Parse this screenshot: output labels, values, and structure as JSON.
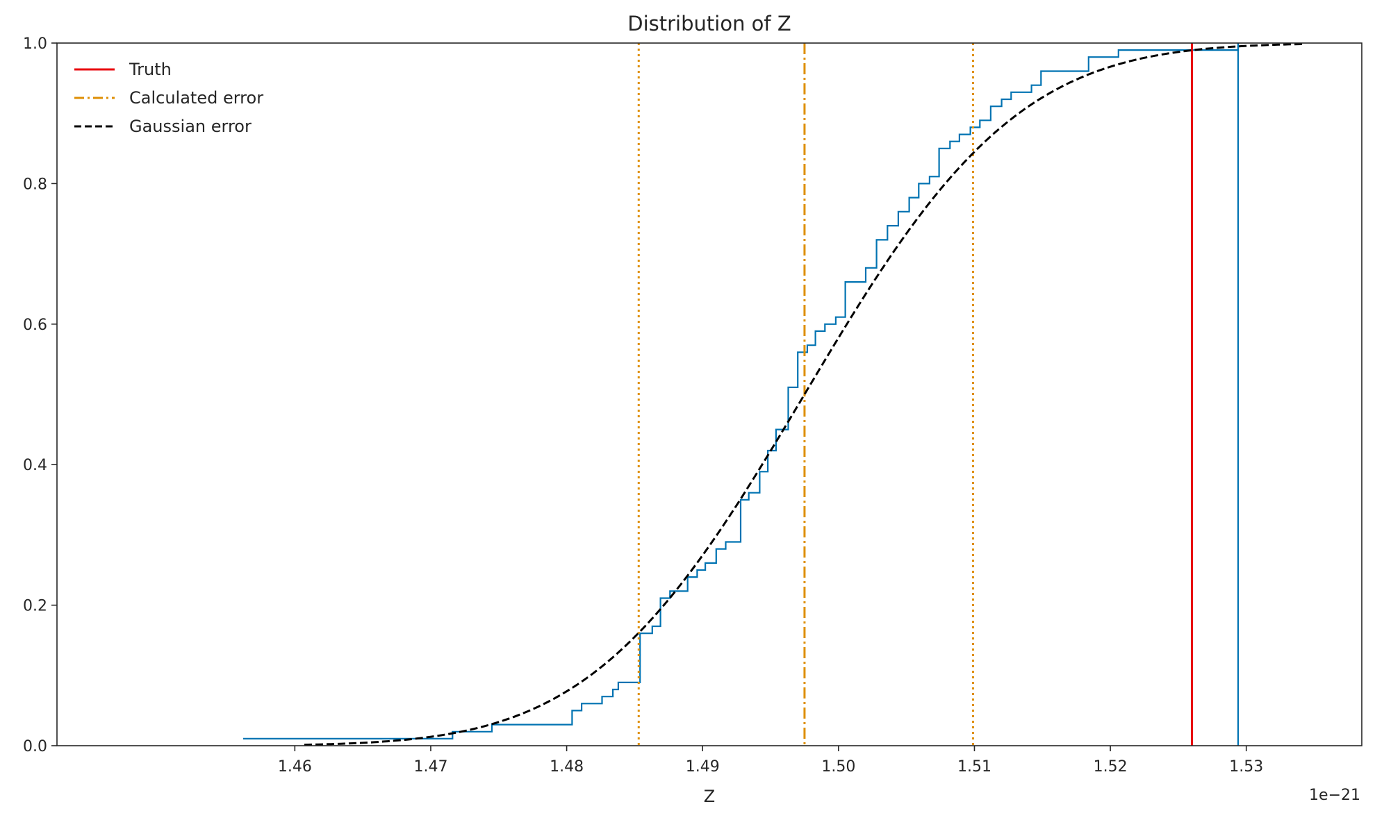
{
  "chart_data": {
    "type": "line",
    "title": "Distribution of Z",
    "xlabel": "Z",
    "ylabel": "",
    "offset_text": "1e−21",
    "xlim": [
      1.4425,
      1.5385
    ],
    "ylim": [
      0.0,
      1.0
    ],
    "xticks": [
      1.46,
      1.47,
      1.48,
      1.49,
      1.5,
      1.51,
      1.52,
      1.53
    ],
    "xtick_labels": [
      "1.46",
      "1.47",
      "1.48",
      "1.49",
      "1.50",
      "1.51",
      "1.52",
      "1.53"
    ],
    "yticks": [
      0.0,
      0.2,
      0.4,
      0.6,
      0.8,
      1.0
    ],
    "ytick_labels": [
      "0.0",
      "0.2",
      "0.4",
      "0.6",
      "0.8",
      "1.0"
    ],
    "grid": false,
    "legend_position": "top-left",
    "legend": [
      {
        "label": "Truth",
        "color": "#e8000b",
        "style": "solid"
      },
      {
        "label": "Calculated error",
        "color": "#de8f05",
        "style": "dashdot"
      },
      {
        "label": "Gaussian error",
        "color": "#000000",
        "style": "dashed"
      }
    ],
    "ecdf": {
      "color": "#0173b2",
      "steps": [
        [
          1.4562,
          0.01
        ],
        [
          1.4716,
          0.02
        ],
        [
          1.4745,
          0.03
        ],
        [
          1.4804,
          0.05
        ],
        [
          1.4811,
          0.06
        ],
        [
          1.4826,
          0.07
        ],
        [
          1.4834,
          0.08
        ],
        [
          1.4838,
          0.09
        ],
        [
          1.4854,
          0.16
        ],
        [
          1.4863,
          0.17
        ],
        [
          1.4869,
          0.21
        ],
        [
          1.4876,
          0.22
        ],
        [
          1.4889,
          0.24
        ],
        [
          1.4896,
          0.25
        ],
        [
          1.4902,
          0.26
        ],
        [
          1.491,
          0.28
        ],
        [
          1.4917,
          0.29
        ],
        [
          1.4928,
          0.35
        ],
        [
          1.4934,
          0.36
        ],
        [
          1.4942,
          0.39
        ],
        [
          1.4948,
          0.42
        ],
        [
          1.4954,
          0.45
        ],
        [
          1.4963,
          0.51
        ],
        [
          1.497,
          0.56
        ],
        [
          1.4977,
          0.57
        ],
        [
          1.4983,
          0.59
        ],
        [
          1.499,
          0.6
        ],
        [
          1.4998,
          0.61
        ],
        [
          1.5005,
          0.66
        ],
        [
          1.502,
          0.68
        ],
        [
          1.5028,
          0.72
        ],
        [
          1.5036,
          0.74
        ],
        [
          1.5044,
          0.76
        ],
        [
          1.5052,
          0.78
        ],
        [
          1.5059,
          0.8
        ],
        [
          1.5067,
          0.81
        ],
        [
          1.5074,
          0.85
        ],
        [
          1.5082,
          0.86
        ],
        [
          1.5089,
          0.87
        ],
        [
          1.5097,
          0.88
        ],
        [
          1.5104,
          0.89
        ],
        [
          1.5112,
          0.91
        ],
        [
          1.512,
          0.92
        ],
        [
          1.5127,
          0.93
        ],
        [
          1.5142,
          0.94
        ],
        [
          1.5149,
          0.96
        ],
        [
          1.5184,
          0.98
        ],
        [
          1.5206,
          0.99
        ],
        [
          1.5294,
          1.0
        ]
      ],
      "end_x": 1.5294
    },
    "truth_x": 1.526,
    "calculated": {
      "center": 1.4975,
      "lower": 1.4853,
      "upper": 1.5099
    },
    "gaussian": {
      "mean": 1.4975,
      "sigma": 0.0123,
      "x_start": 1.4607,
      "x_end": 1.5343
    }
  }
}
